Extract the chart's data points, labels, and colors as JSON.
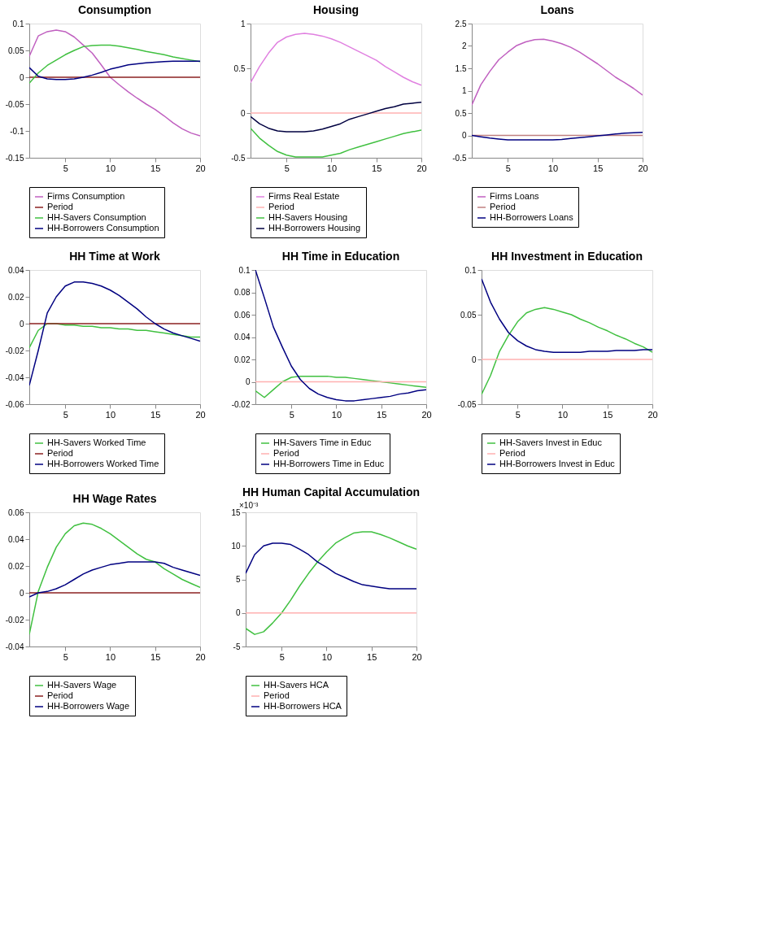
{
  "chart_data": [
    {
      "type": "line",
      "title": "Consumption",
      "x": [
        1,
        2,
        3,
        4,
        5,
        6,
        7,
        8,
        9,
        10,
        11,
        12,
        13,
        14,
        15,
        16,
        17,
        18,
        19,
        20
      ],
      "xlim": [
        1,
        20
      ],
      "xticks": [
        5,
        10,
        15,
        20
      ],
      "ylim": [
        -0.15,
        0.1
      ],
      "yticks": [
        -0.15,
        -0.1,
        -0.05,
        0,
        0.05,
        0.1
      ],
      "legend": "bottom",
      "series": [
        {
          "name": "Firms Consumption",
          "color": "#c060c0",
          "values": [
            0.039,
            0.077,
            0.085,
            0.088,
            0.085,
            0.075,
            0.06,
            0.045,
            0.023,
            0.0,
            -0.014,
            -0.027,
            -0.039,
            -0.05,
            -0.06,
            -0.072,
            -0.085,
            -0.096,
            -0.104,
            -0.109
          ]
        },
        {
          "name": "Period",
          "color": "#8b2020",
          "values": [
            0,
            0,
            0,
            0,
            0,
            0,
            0,
            0,
            0,
            0,
            0,
            0,
            0,
            0,
            0,
            0,
            0,
            0,
            0,
            0
          ]
        },
        {
          "name": "HH-Savers Consumption",
          "color": "#40c040",
          "values": [
            -0.011,
            0.008,
            0.022,
            0.032,
            0.042,
            0.05,
            0.057,
            0.059,
            0.06,
            0.06,
            0.058,
            0.055,
            0.052,
            0.048,
            0.045,
            0.042,
            0.038,
            0.035,
            0.032,
            0.029
          ]
        },
        {
          "name": "HH-Borrowers Consumption",
          "color": "#000080",
          "values": [
            0.018,
            0.002,
            -0.003,
            -0.004,
            -0.004,
            -0.003,
            0.0,
            0.004,
            0.009,
            0.015,
            0.019,
            0.023,
            0.025,
            0.027,
            0.028,
            0.029,
            0.03,
            0.03,
            0.03,
            0.03
          ]
        }
      ]
    },
    {
      "type": "line",
      "title": "Housing",
      "x": [
        1,
        2,
        3,
        4,
        5,
        6,
        7,
        8,
        9,
        10,
        11,
        12,
        13,
        14,
        15,
        16,
        17,
        18,
        19,
        20
      ],
      "xlim": [
        1,
        20
      ],
      "xticks": [
        5,
        10,
        15,
        20
      ],
      "ylim": [
        -0.5,
        1
      ],
      "yticks": [
        -0.5,
        0,
        0.5,
        1
      ],
      "legend": "bottom",
      "series": [
        {
          "name": "Firms Real Estate",
          "color": "#e080e0",
          "values": [
            0.34,
            0.52,
            0.67,
            0.79,
            0.85,
            0.88,
            0.89,
            0.88,
            0.86,
            0.83,
            0.79,
            0.74,
            0.69,
            0.64,
            0.59,
            0.52,
            0.46,
            0.4,
            0.35,
            0.31
          ]
        },
        {
          "name": "Period",
          "color": "#ffb0b0",
          "values": [
            0,
            0,
            0,
            0,
            0,
            0,
            0,
            0,
            0,
            0,
            0,
            0,
            0,
            0,
            0,
            0,
            0,
            0,
            0,
            0
          ]
        },
        {
          "name": "HH-Savers Housing",
          "color": "#40c040",
          "values": [
            -0.17,
            -0.28,
            -0.36,
            -0.43,
            -0.47,
            -0.49,
            -0.49,
            -0.49,
            -0.49,
            -0.47,
            -0.45,
            -0.41,
            -0.38,
            -0.35,
            -0.32,
            -0.29,
            -0.26,
            -0.23,
            -0.21,
            -0.19
          ]
        },
        {
          "name": "HH-Borrowers Housing",
          "color": "#000040",
          "values": [
            -0.04,
            -0.12,
            -0.17,
            -0.2,
            -0.21,
            -0.21,
            -0.21,
            -0.2,
            -0.18,
            -0.15,
            -0.12,
            -0.07,
            -0.04,
            -0.01,
            0.02,
            0.05,
            0.07,
            0.1,
            0.11,
            0.12
          ]
        }
      ]
    },
    {
      "type": "line",
      "title": "Loans",
      "x": [
        1,
        2,
        3,
        4,
        5,
        6,
        7,
        8,
        9,
        10,
        11,
        12,
        13,
        14,
        15,
        16,
        17,
        18,
        19,
        20
      ],
      "xlim": [
        1,
        20
      ],
      "xticks": [
        5,
        10,
        15,
        20
      ],
      "ylim": [
        -0.5,
        2.5
      ],
      "yticks": [
        -0.5,
        0,
        0.5,
        1,
        1.5,
        2,
        2.5
      ],
      "legend": "bottom",
      "series": [
        {
          "name": "Firms Loans",
          "color": "#c060c0",
          "values": [
            0.68,
            1.13,
            1.43,
            1.69,
            1.86,
            2.01,
            2.09,
            2.14,
            2.15,
            2.11,
            2.05,
            1.97,
            1.86,
            1.73,
            1.6,
            1.45,
            1.3,
            1.18,
            1.05,
            0.9
          ]
        },
        {
          "name": "Period",
          "color": "#c08080",
          "values": [
            0,
            0,
            0,
            0,
            0,
            0,
            0,
            0,
            0,
            0,
            0,
            0,
            0,
            0,
            0,
            0,
            0,
            0,
            0,
            0
          ]
        },
        {
          "name": "HH-Borrowers Loans",
          "color": "#000080",
          "values": [
            0.0,
            -0.03,
            -0.06,
            -0.08,
            -0.1,
            -0.1,
            -0.1,
            -0.1,
            -0.1,
            -0.1,
            -0.09,
            -0.07,
            -0.05,
            -0.03,
            -0.01,
            0.01,
            0.03,
            0.05,
            0.06,
            0.07
          ]
        }
      ]
    },
    {
      "type": "line",
      "title": "HH Time at Work",
      "x": [
        1,
        2,
        3,
        4,
        5,
        6,
        7,
        8,
        9,
        10,
        11,
        12,
        13,
        14,
        15,
        16,
        17,
        18,
        19,
        20
      ],
      "xlim": [
        1,
        20
      ],
      "xticks": [
        5,
        10,
        15,
        20
      ],
      "ylim": [
        -0.06,
        0.04
      ],
      "yticks": [
        -0.06,
        -0.04,
        -0.02,
        0,
        0.02,
        0.04
      ],
      "legend": "bottom",
      "series": [
        {
          "name": "HH-Savers Worked Time",
          "color": "#40c040",
          "values": [
            -0.018,
            -0.005,
            0.0,
            0.0,
            -0.001,
            -0.001,
            -0.002,
            -0.002,
            -0.003,
            -0.003,
            -0.004,
            -0.004,
            -0.005,
            -0.005,
            -0.006,
            -0.007,
            -0.008,
            -0.009,
            -0.01,
            -0.01
          ]
        },
        {
          "name": "Period",
          "color": "#8b2020",
          "values": [
            0,
            0,
            0,
            0,
            0,
            0,
            0,
            0,
            0,
            0,
            0,
            0,
            0,
            0,
            0,
            0,
            0,
            0,
            0,
            0
          ]
        },
        {
          "name": "HH-Borrowers Worked Time",
          "color": "#000080",
          "values": [
            -0.046,
            -0.02,
            0.008,
            0.02,
            0.028,
            0.031,
            0.031,
            0.03,
            0.028,
            0.025,
            0.021,
            0.016,
            0.011,
            0.005,
            0.0,
            -0.004,
            -0.007,
            -0.009,
            -0.011,
            -0.013
          ]
        }
      ]
    },
    {
      "type": "line",
      "title": "HH Time in Education",
      "x": [
        1,
        2,
        3,
        4,
        5,
        6,
        7,
        8,
        9,
        10,
        11,
        12,
        13,
        14,
        15,
        16,
        17,
        18,
        19,
        20
      ],
      "xlim": [
        1,
        20
      ],
      "xticks": [
        5,
        10,
        15,
        20
      ],
      "ylim": [
        -0.02,
        0.1
      ],
      "yticks": [
        -0.02,
        0,
        0.02,
        0.04,
        0.06,
        0.08,
        0.1
      ],
      "legend": "bottom",
      "series": [
        {
          "name": "HH-Savers Time in Educ",
          "color": "#40c040",
          "values": [
            -0.008,
            -0.014,
            -0.007,
            0.0,
            0.004,
            0.005,
            0.005,
            0.005,
            0.005,
            0.004,
            0.004,
            0.003,
            0.002,
            0.001,
            0.0,
            -0.001,
            -0.002,
            -0.003,
            -0.004,
            -0.005
          ]
        },
        {
          "name": "Period",
          "color": "#ffb0b0",
          "values": [
            0,
            0,
            0,
            0,
            0,
            0,
            0,
            0,
            0,
            0,
            0,
            0,
            0,
            0,
            0,
            0,
            0,
            0,
            0,
            0
          ]
        },
        {
          "name": "HH-Borrowers Time in Educ",
          "color": "#000080",
          "values": [
            0.1,
            0.075,
            0.049,
            0.031,
            0.014,
            0.002,
            -0.006,
            -0.011,
            -0.014,
            -0.016,
            -0.017,
            -0.017,
            -0.016,
            -0.015,
            -0.014,
            -0.013,
            -0.011,
            -0.01,
            -0.008,
            -0.007
          ]
        }
      ]
    },
    {
      "type": "line",
      "title": "HH Investment in Education",
      "x": [
        1,
        2,
        3,
        4,
        5,
        6,
        7,
        8,
        9,
        10,
        11,
        12,
        13,
        14,
        15,
        16,
        17,
        18,
        19,
        20
      ],
      "xlim": [
        1,
        20
      ],
      "xticks": [
        5,
        10,
        15,
        20
      ],
      "ylim": [
        -0.05,
        0.1
      ],
      "yticks": [
        -0.05,
        0,
        0.05,
        0.1
      ],
      "legend": "bottom",
      "series": [
        {
          "name": "HH-Savers Invest in Educ",
          "color": "#40c040",
          "values": [
            -0.039,
            -0.018,
            0.009,
            0.027,
            0.042,
            0.052,
            0.056,
            0.058,
            0.056,
            0.053,
            0.05,
            0.045,
            0.041,
            0.036,
            0.032,
            0.027,
            0.023,
            0.018,
            0.014,
            0.008
          ]
        },
        {
          "name": "Period",
          "color": "#ffb0b0",
          "values": [
            0,
            0,
            0,
            0,
            0,
            0,
            0,
            0,
            0,
            0,
            0,
            0,
            0,
            0,
            0,
            0,
            0,
            0,
            0,
            0
          ]
        },
        {
          "name": "HH-Borrowers Invest in Educ",
          "color": "#000080",
          "values": [
            0.09,
            0.064,
            0.045,
            0.03,
            0.021,
            0.015,
            0.011,
            0.009,
            0.008,
            0.008,
            0.008,
            0.008,
            0.009,
            0.009,
            0.009,
            0.01,
            0.01,
            0.01,
            0.011,
            0.011
          ]
        }
      ]
    },
    {
      "type": "line",
      "title": "HH Wage Rates",
      "x": [
        1,
        2,
        3,
        4,
        5,
        6,
        7,
        8,
        9,
        10,
        11,
        12,
        13,
        14,
        15,
        16,
        17,
        18,
        19,
        20
      ],
      "xlim": [
        1,
        20
      ],
      "xticks": [
        5,
        10,
        15,
        20
      ],
      "ylim": [
        -0.04,
        0.06
      ],
      "yticks": [
        -0.04,
        -0.02,
        0,
        0.02,
        0.04,
        0.06
      ],
      "legend": "bottom",
      "series": [
        {
          "name": "HH-Savers Wage",
          "color": "#40c040",
          "values": [
            -0.031,
            0.001,
            0.019,
            0.034,
            0.044,
            0.05,
            0.052,
            0.051,
            0.048,
            0.044,
            0.039,
            0.034,
            0.029,
            0.025,
            0.023,
            0.018,
            0.014,
            0.01,
            0.007,
            0.004
          ]
        },
        {
          "name": "Period",
          "color": "#8b2020",
          "values": [
            0,
            0,
            0,
            0,
            0,
            0,
            0,
            0,
            0,
            0,
            0,
            0,
            0,
            0,
            0,
            0,
            0,
            0,
            0,
            0
          ]
        },
        {
          "name": "HH-Borrowers Wage",
          "color": "#000080",
          "values": [
            -0.003,
            0.0,
            0.001,
            0.003,
            0.006,
            0.01,
            0.014,
            0.017,
            0.019,
            0.021,
            0.022,
            0.023,
            0.023,
            0.023,
            0.023,
            0.022,
            0.019,
            0.017,
            0.015,
            0.013
          ]
        }
      ]
    },
    {
      "type": "line",
      "title": "HH Human Capital Accumulation",
      "x": [
        1,
        2,
        3,
        4,
        5,
        6,
        7,
        8,
        9,
        10,
        11,
        12,
        13,
        14,
        15,
        16,
        17,
        18,
        19,
        20
      ],
      "xlim": [
        1,
        20
      ],
      "xticks": [
        5,
        10,
        15,
        20
      ],
      "ylim": [
        -5,
        15
      ],
      "yticks": [
        -5,
        0,
        5,
        10,
        15
      ],
      "legend": "bottom",
      "annotations": [
        "×10⁻³"
      ],
      "series": [
        {
          "name": "HH-Savers HCA",
          "color": "#40c040",
          "values": [
            -2.3,
            -3.2,
            -2.8,
            -1.5,
            0.0,
            1.9,
            4.0,
            5.9,
            7.6,
            9.1,
            10.4,
            11.2,
            11.9,
            12.1,
            12.1,
            11.7,
            11.2,
            10.6,
            10.0,
            9.5
          ]
        },
        {
          "name": "Period",
          "color": "#ffb0b0",
          "values": [
            0,
            0,
            0,
            0,
            0,
            0,
            0,
            0,
            0,
            0,
            0,
            0,
            0,
            0,
            0,
            0,
            0,
            0,
            0,
            0
          ]
        },
        {
          "name": "HH-Borrowers HCA",
          "color": "#000080",
          "values": [
            5.9,
            8.7,
            10.0,
            10.4,
            10.4,
            10.2,
            9.5,
            8.7,
            7.6,
            6.8,
            5.9,
            5.3,
            4.7,
            4.2,
            4.0,
            3.8,
            3.6,
            3.6,
            3.6,
            3.6
          ]
        }
      ]
    }
  ]
}
